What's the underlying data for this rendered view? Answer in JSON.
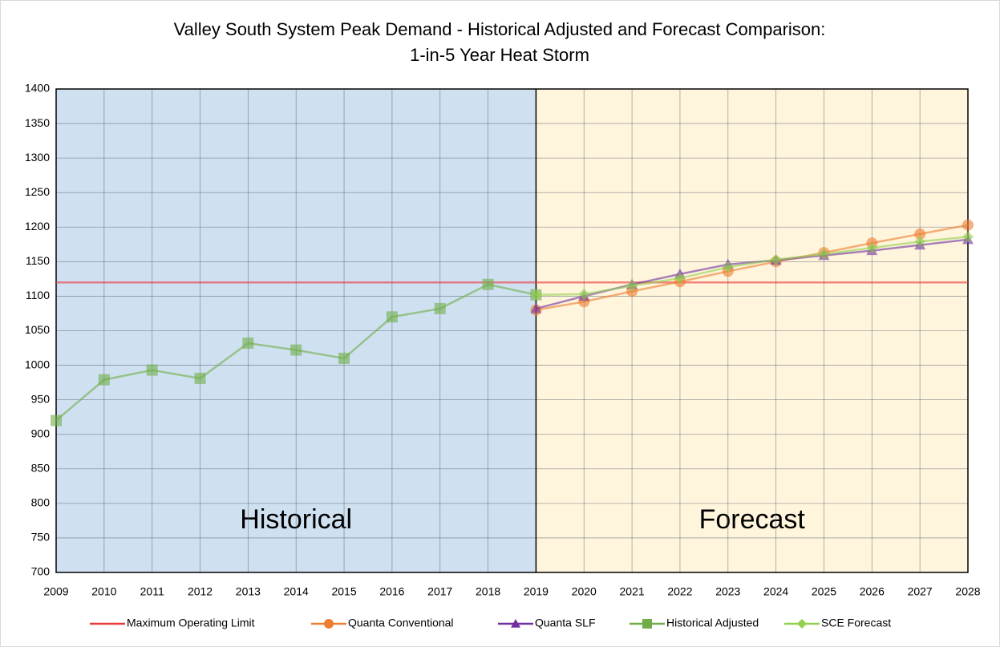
{
  "chart_data": {
    "type": "line",
    "title": [
      "Valley South System Peak Demand - Historical Adjusted and Forecast Comparison:",
      "1-in-5 Year Heat Storm"
    ],
    "x": [
      2009,
      2010,
      2011,
      2012,
      2013,
      2014,
      2015,
      2016,
      2017,
      2018,
      2019,
      2020,
      2021,
      2022,
      2023,
      2024,
      2025,
      2026,
      2027,
      2028
    ],
    "xlim": [
      2009,
      2028
    ],
    "xticks": [
      2009,
      2010,
      2011,
      2012,
      2013,
      2014,
      2015,
      2016,
      2017,
      2018,
      2019,
      2020,
      2021,
      2022,
      2023,
      2024,
      2025,
      2026,
      2027,
      2028
    ],
    "ylim": [
      700,
      1400
    ],
    "yticks": [
      700,
      750,
      800,
      850,
      900,
      950,
      1000,
      1050,
      1100,
      1150,
      1200,
      1250,
      1300,
      1350,
      1400
    ],
    "grid": true,
    "legend": "bottom",
    "regions": [
      {
        "label": "Historical",
        "from": 2009,
        "to": 2019,
        "color": "#cfe0f1"
      },
      {
        "label": "Forecast",
        "from": 2019,
        "to": 2028,
        "color": "#fff5dc"
      }
    ],
    "series": [
      {
        "name": "Maximum Operating Limit",
        "color": "#e83a3a",
        "marker": "none",
        "values": [
          1120,
          1120,
          1120,
          1120,
          1120,
          1120,
          1120,
          1120,
          1120,
          1120,
          1120,
          1120,
          1120,
          1120,
          1120,
          1120,
          1120,
          1120,
          1120,
          1120
        ]
      },
      {
        "name": "Quanta Conventional",
        "color": "#ed7d31",
        "marker": "circle",
        "values": [
          null,
          null,
          null,
          null,
          null,
          null,
          null,
          null,
          null,
          null,
          1080,
          1092,
          1107,
          1121,
          1136,
          1150,
          1163,
          1177,
          1190,
          1203
        ]
      },
      {
        "name": "Quanta SLF",
        "color": "#7030a0",
        "marker": "triangle",
        "values": [
          null,
          null,
          null,
          null,
          null,
          null,
          null,
          null,
          null,
          null,
          1082,
          1100,
          1117,
          1132,
          1146,
          1152,
          1159,
          1166,
          1174,
          1182
        ]
      },
      {
        "name": "Historical Adjusted",
        "color": "#70ad47",
        "marker": "square",
        "values": [
          920,
          979,
          993,
          981,
          1032,
          1022,
          1010,
          1070,
          1082,
          1117,
          1102,
          null,
          null,
          null,
          null,
          null,
          null,
          null,
          null,
          null
        ]
      },
      {
        "name": "SCE Forecast",
        "color": "#92d050",
        "marker": "diamond",
        "values": [
          null,
          null,
          null,
          null,
          null,
          null,
          null,
          null,
          null,
          null,
          1102,
          1103,
          1115,
          1126,
          1142,
          1153,
          1161,
          1170,
          1179,
          1186
        ]
      }
    ]
  }
}
